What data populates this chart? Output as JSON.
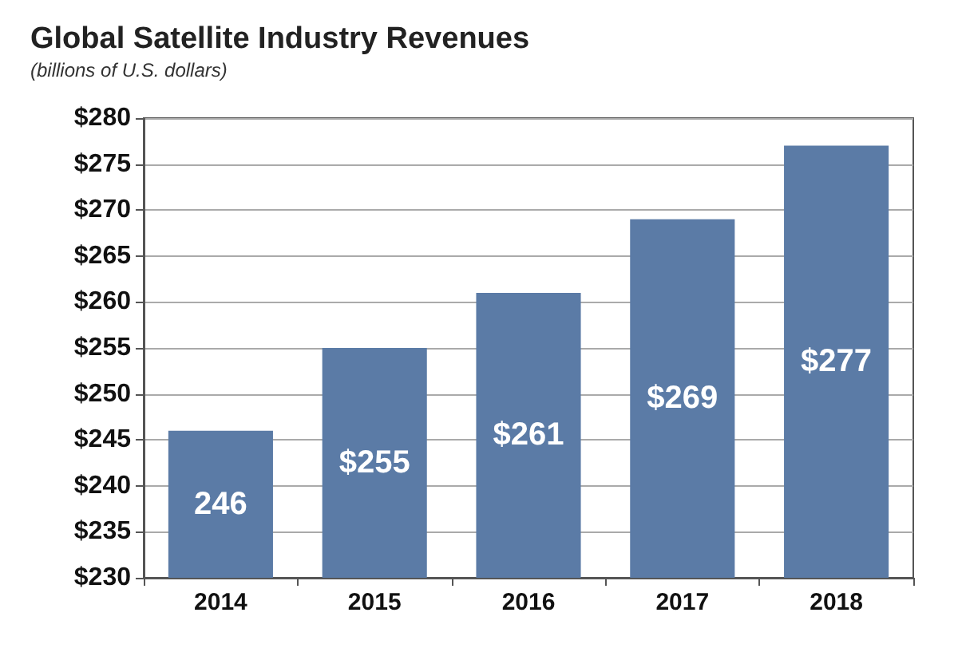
{
  "chart_data": {
    "type": "bar",
    "title": "Global Satellite Industry Revenues",
    "subtitle": "(billions of U.S. dollars)",
    "categories": [
      "2014",
      "2015",
      "2016",
      "2017",
      "2018"
    ],
    "values": [
      246,
      255,
      261,
      269,
      277
    ],
    "value_labels": [
      "246",
      "$255",
      "$261",
      "$269",
      "$277"
    ],
    "color": "#5b7ba6",
    "ylim": [
      230,
      280
    ],
    "yticks": [
      {
        "value": 230,
        "label": "$230"
      },
      {
        "value": 235,
        "label": "$235"
      },
      {
        "value": 240,
        "label": "$240"
      },
      {
        "value": 245,
        "label": "$245"
      },
      {
        "value": 250,
        "label": "$250"
      },
      {
        "value": 255,
        "label": "$255"
      },
      {
        "value": 260,
        "label": "$260"
      },
      {
        "value": 265,
        "label": "$265"
      },
      {
        "value": 270,
        "label": "$270"
      },
      {
        "value": 275,
        "label": "$275"
      },
      {
        "value": 280,
        "label": "$280"
      }
    ],
    "grid": "y"
  }
}
